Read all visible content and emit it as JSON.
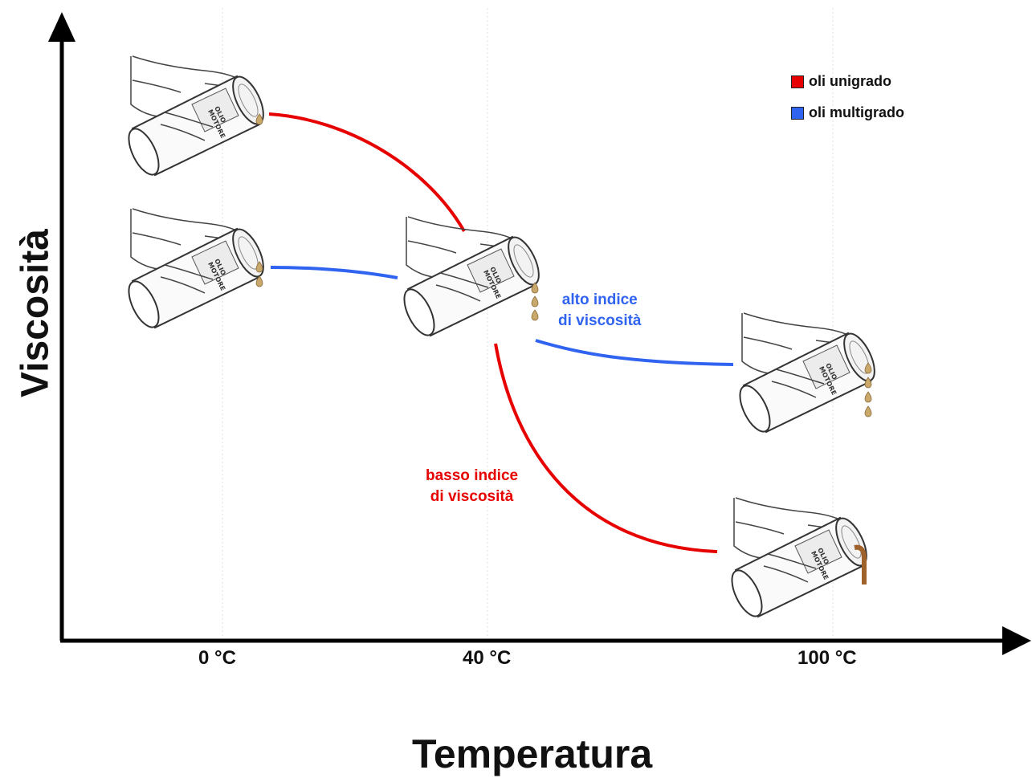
{
  "axes": {
    "y_label": "Viscosità",
    "x_label": "Temperatura",
    "ticks": [
      "0 °C",
      "40 °C",
      "100 °C"
    ]
  },
  "legend": [
    {
      "label": "oli unigrado",
      "color": "#e60000"
    },
    {
      "label": "oli multigrado",
      "color": "#2f63f0"
    }
  ],
  "annotations": {
    "multigrade": [
      "alto indice",
      "di viscosità"
    ],
    "unigrade": [
      "basso indice",
      "di viscosità"
    ]
  },
  "can_label": [
    "OLIO",
    "MOTORE"
  ],
  "colors": {
    "unigrade": "#e60000",
    "multigrade": "#2f63f0",
    "axis": "#000000",
    "grid": "#dddddd",
    "oil": "#c9a86b"
  },
  "icons": [
    "pouring-oil-can-icon"
  ]
}
